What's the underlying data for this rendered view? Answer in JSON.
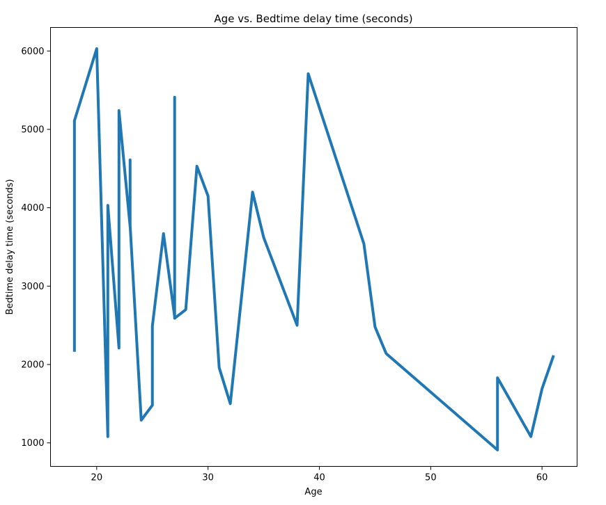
{
  "chart_data": {
    "type": "line",
    "title": "Age vs. Bedtime delay time (seconds)",
    "xlabel": "Age",
    "ylabel": "Bedtime delay time (seconds)",
    "xlim": [
      15.85,
      63.15
    ],
    "ylim": [
      700,
      6300
    ],
    "xticks": [
      20,
      30,
      40,
      50,
      60
    ],
    "yticks": [
      1000,
      2000,
      3000,
      4000,
      5000,
      6000
    ],
    "grid": false,
    "legend": "none",
    "series": [
      {
        "color": "#1f77b4",
        "x": [
          18,
          18,
          20,
          21,
          21,
          22,
          22,
          23,
          23,
          23,
          24,
          25,
          25,
          26,
          27,
          27,
          27,
          28,
          29,
          30,
          31,
          32,
          34,
          35,
          38,
          39,
          44,
          45,
          46,
          56,
          56,
          59,
          60,
          61
        ],
        "y": [
          2180,
          5110,
          6030,
          1080,
          4030,
          2210,
          5240,
          3760,
          4610,
          3780,
          1290,
          1480,
          2490,
          3670,
          2610,
          5410,
          2590,
          2700,
          4530,
          4150,
          1960,
          1500,
          4200,
          3620,
          2500,
          5710,
          3540,
          2480,
          2140,
          910,
          1830,
          1080,
          1690,
          2100
        ]
      }
    ]
  }
}
